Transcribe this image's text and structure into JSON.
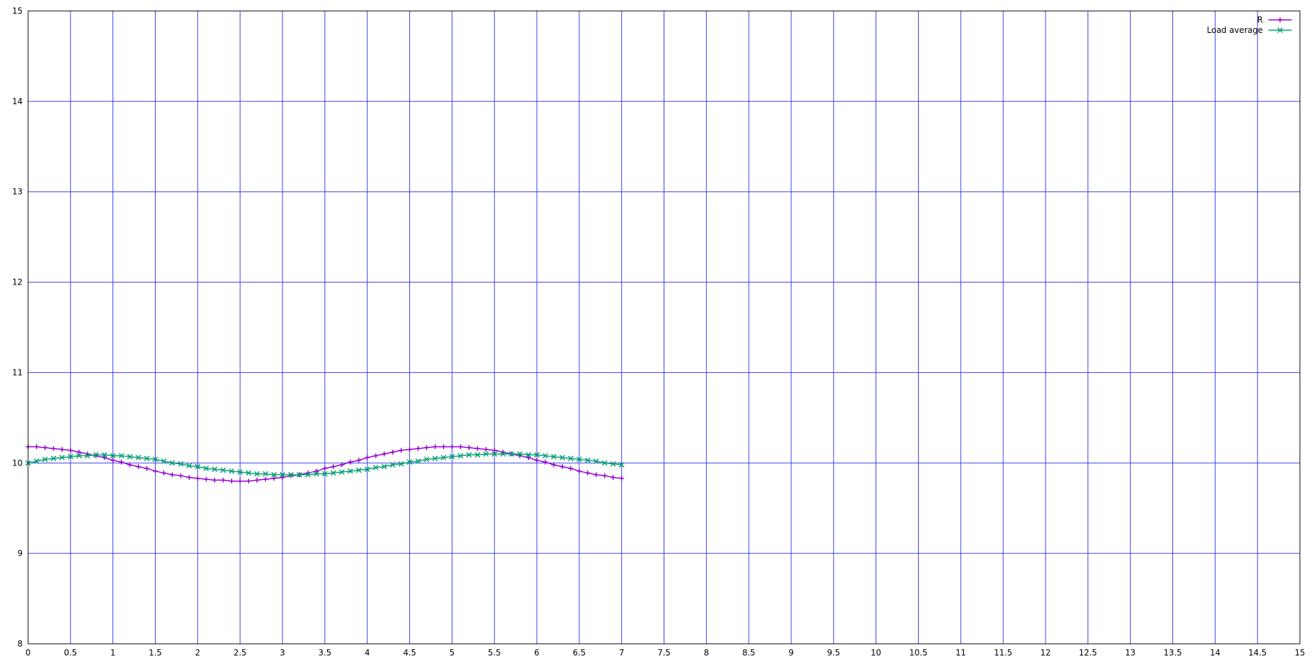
{
  "chart_data": {
    "type": "line",
    "xlim": [
      0,
      15
    ],
    "ylim": [
      8,
      15
    ],
    "x_ticks": [
      "0",
      "0.5",
      "1",
      "1.5",
      "2",
      "2.5",
      "3",
      "3.5",
      "4",
      "4.5",
      "5",
      "5.5",
      "6",
      "6.5",
      "7",
      "7.5",
      "8",
      "8.5",
      "9",
      "9.5",
      "10",
      "10.5",
      "11",
      "11.5",
      "12",
      "12.5",
      "13",
      "13.5",
      "14",
      "14.5",
      "15"
    ],
    "y_ticks": [
      "8",
      "9",
      "10",
      "11",
      "12",
      "13",
      "14",
      "15"
    ],
    "grid": true,
    "grid_color": "#3a3ae8",
    "legend_position": "top-right",
    "series": [
      {
        "name": "R",
        "color": "#9400d3",
        "marker": "plus",
        "x": [
          0,
          0.1,
          0.2,
          0.3,
          0.4,
          0.5,
          0.6,
          0.7,
          0.8,
          0.9,
          1,
          1.1,
          1.2,
          1.3,
          1.4,
          1.5,
          1.6,
          1.7,
          1.8,
          1.9,
          2,
          2.1,
          2.2,
          2.3,
          2.4,
          2.5,
          2.6,
          2.7,
          2.8,
          2.9,
          3,
          3.1,
          3.2,
          3.3,
          3.4,
          3.5,
          3.6,
          3.7,
          3.8,
          3.9,
          4,
          4.1,
          4.2,
          4.3,
          4.4,
          4.5,
          4.6,
          4.7,
          4.8,
          4.9,
          5,
          5.1,
          5.2,
          5.3,
          5.4,
          5.5,
          5.6,
          5.7,
          5.8,
          5.9,
          6,
          6.1,
          6.2,
          6.3,
          6.4,
          6.5,
          6.6,
          6.7,
          6.8,
          6.9,
          7
        ],
        "y": [
          10.18,
          10.18,
          10.17,
          10.16,
          10.15,
          10.14,
          10.12,
          10.1,
          10.08,
          10.06,
          10.03,
          10.01,
          9.98,
          9.96,
          9.94,
          9.91,
          9.89,
          9.87,
          9.86,
          9.84,
          9.83,
          9.82,
          9.81,
          9.81,
          9.8,
          9.8,
          9.8,
          9.81,
          9.82,
          9.83,
          9.84,
          9.86,
          9.87,
          9.89,
          9.91,
          9.94,
          9.96,
          9.98,
          10.01,
          10.03,
          10.06,
          10.08,
          10.1,
          10.12,
          10.14,
          10.15,
          10.16,
          10.17,
          10.18,
          10.18,
          10.18,
          10.18,
          10.17,
          10.16,
          10.15,
          10.14,
          10.12,
          10.1,
          10.08,
          10.06,
          10.03,
          10.01,
          9.98,
          9.96,
          9.94,
          9.91,
          9.89,
          9.87,
          9.86,
          9.84,
          9.83
        ]
      },
      {
        "name": "Load average",
        "color": "#009e73",
        "marker": "cross",
        "x": [
          0,
          0.1,
          0.2,
          0.3,
          0.4,
          0.5,
          0.6,
          0.7,
          0.8,
          0.9,
          1,
          1.1,
          1.2,
          1.3,
          1.4,
          1.5,
          1.6,
          1.7,
          1.8,
          1.9,
          2,
          2.1,
          2.2,
          2.3,
          2.4,
          2.5,
          2.6,
          2.7,
          2.8,
          2.9,
          3,
          3.1,
          3.2,
          3.3,
          3.4,
          3.5,
          3.6,
          3.7,
          3.8,
          3.9,
          4,
          4.1,
          4.2,
          4.3,
          4.4,
          4.5,
          4.6,
          4.7,
          4.8,
          4.9,
          5,
          5.1,
          5.2,
          5.3,
          5.4,
          5.5,
          5.6,
          5.7,
          5.8,
          5.9,
          6,
          6.1,
          6.2,
          6.3,
          6.4,
          6.5,
          6.6,
          6.7,
          6.8,
          6.9,
          7
        ],
        "y": [
          10.0,
          10.02,
          10.04,
          10.05,
          10.06,
          10.07,
          10.08,
          10.08,
          10.09,
          10.09,
          10.08,
          10.08,
          10.07,
          10.06,
          10.05,
          10.04,
          10.02,
          10.0,
          9.99,
          9.97,
          9.96,
          9.94,
          9.93,
          9.92,
          9.91,
          9.9,
          9.89,
          9.88,
          9.88,
          9.87,
          9.87,
          9.87,
          9.87,
          9.87,
          9.88,
          9.88,
          9.89,
          9.9,
          9.91,
          9.92,
          9.93,
          9.95,
          9.96,
          9.98,
          9.99,
          10.01,
          10.02,
          10.04,
          10.05,
          10.06,
          10.07,
          10.08,
          10.09,
          10.09,
          10.1,
          10.1,
          10.1,
          10.1,
          10.1,
          10.09,
          10.09,
          10.08,
          10.07,
          10.06,
          10.05,
          10.04,
          10.03,
          10.02,
          10.0,
          9.99,
          9.98
        ]
      }
    ]
  }
}
